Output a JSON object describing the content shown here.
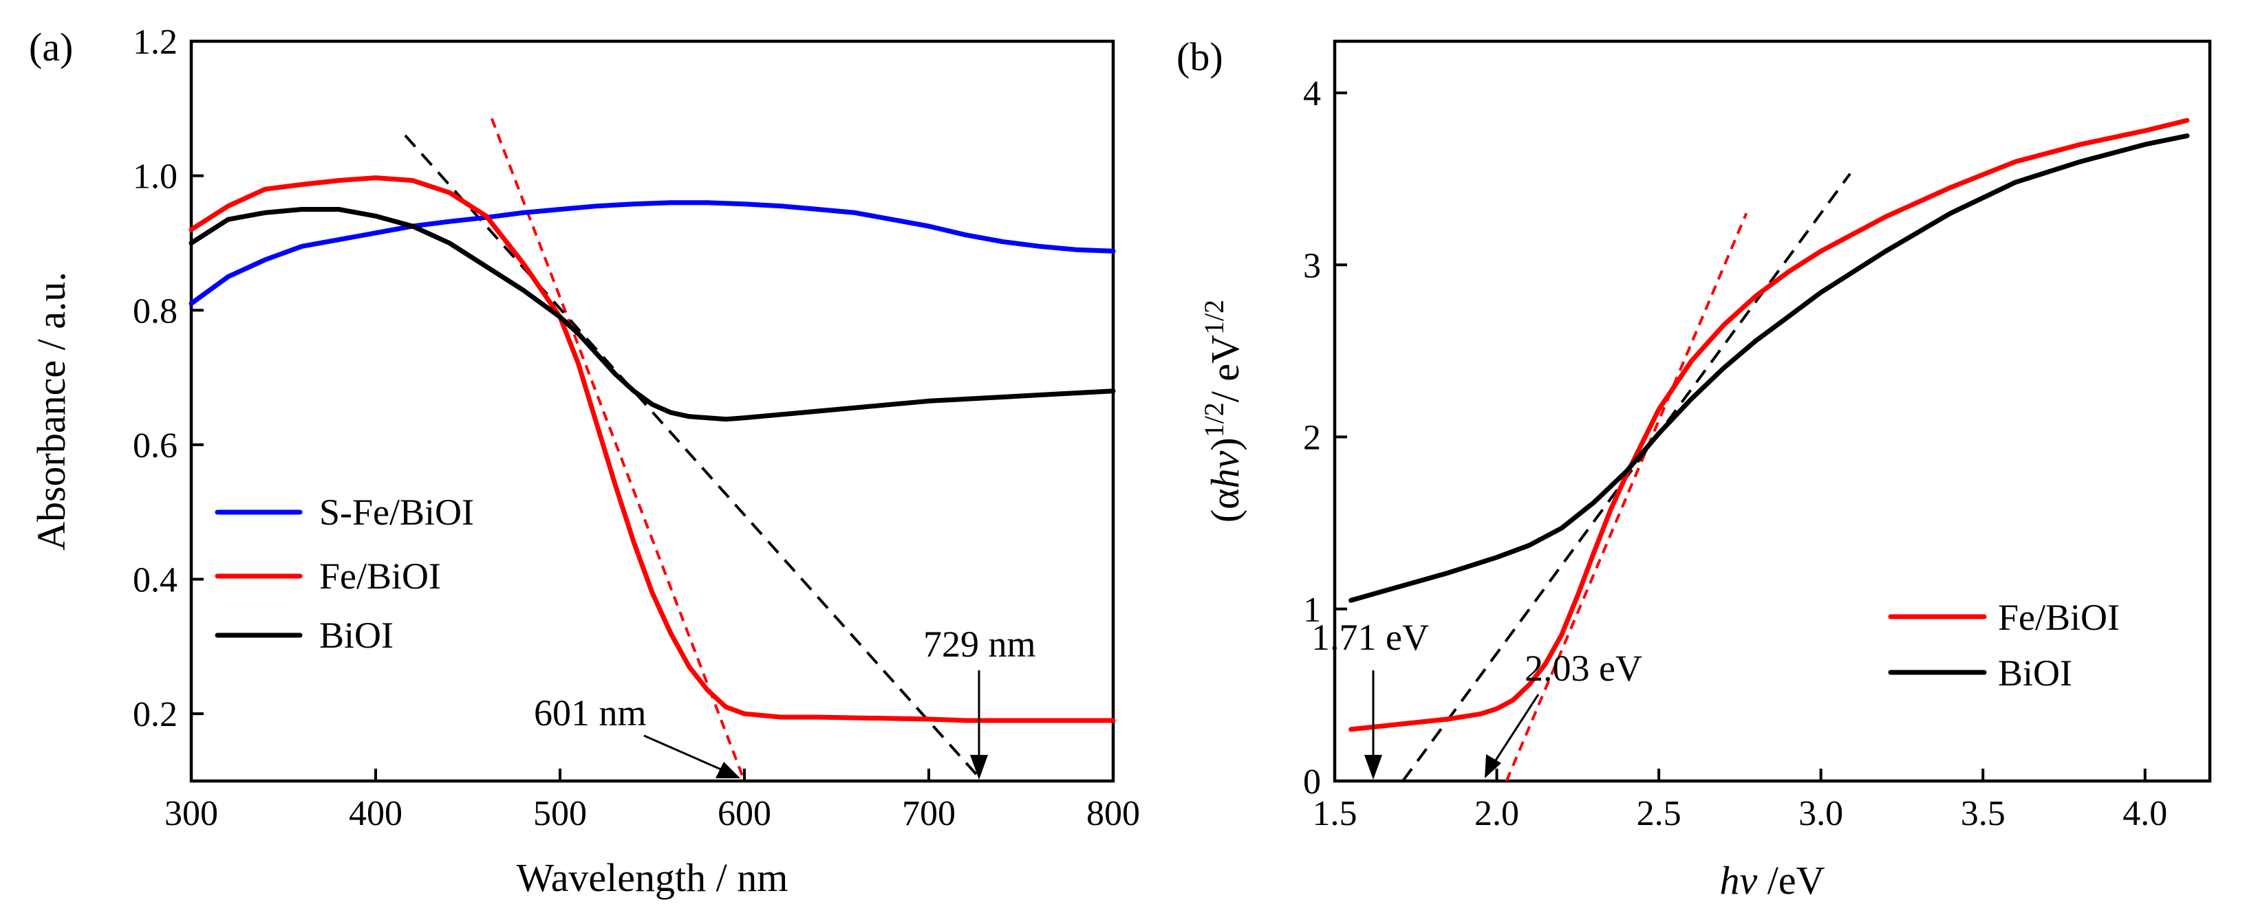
{
  "chart_data": [
    {
      "panel": "(a)",
      "type": "line",
      "xlabel": "Wavelength / nm",
      "ylabel": "Absorbance / a.u.",
      "xlim": [
        300,
        800
      ],
      "ylim": [
        0.1,
        1.2
      ],
      "xticks": [
        300,
        400,
        500,
        600,
        700,
        800
      ],
      "yticks": [
        0.2,
        0.4,
        0.6,
        0.8,
        1.0,
        1.2
      ],
      "xtick_labels": [
        "300",
        "400",
        "500",
        "600",
        "700",
        "800"
      ],
      "ytick_labels": [
        "0.2",
        "0.4",
        "0.6",
        "0.8",
        "1.0",
        "1.2"
      ],
      "legend_position": "middle-left",
      "series": [
        {
          "name": "S-Fe/BiOI",
          "color": "#0000ff",
          "x": [
            300,
            320,
            340,
            360,
            380,
            400,
            420,
            440,
            460,
            480,
            500,
            520,
            540,
            560,
            580,
            600,
            620,
            640,
            660,
            680,
            700,
            720,
            740,
            760,
            780,
            800
          ],
          "y": [
            0.81,
            0.85,
            0.875,
            0.895,
            0.905,
            0.915,
            0.925,
            0.932,
            0.938,
            0.945,
            0.95,
            0.955,
            0.958,
            0.96,
            0.96,
            0.958,
            0.955,
            0.95,
            0.945,
            0.935,
            0.925,
            0.912,
            0.902,
            0.895,
            0.89,
            0.888
          ]
        },
        {
          "name": "Fe/BiOI",
          "color": "#ff0000",
          "x": [
            300,
            320,
            340,
            360,
            380,
            400,
            420,
            440,
            460,
            480,
            500,
            510,
            520,
            530,
            540,
            550,
            560,
            570,
            580,
            590,
            600,
            620,
            640,
            660,
            680,
            700,
            720,
            740,
            760,
            780,
            800
          ],
          "y": [
            0.92,
            0.955,
            0.98,
            0.987,
            0.993,
            0.997,
            0.993,
            0.975,
            0.94,
            0.87,
            0.79,
            0.72,
            0.63,
            0.54,
            0.455,
            0.38,
            0.32,
            0.27,
            0.235,
            0.21,
            0.2,
            0.195,
            0.195,
            0.194,
            0.193,
            0.192,
            0.19,
            0.19,
            0.19,
            0.19,
            0.19
          ]
        },
        {
          "name": "BiOI",
          "color": "#000000",
          "x": [
            300,
            320,
            340,
            360,
            380,
            400,
            420,
            440,
            460,
            480,
            500,
            510,
            520,
            530,
            540,
            550,
            560,
            570,
            580,
            590,
            600,
            620,
            640,
            660,
            680,
            700,
            720,
            740,
            760,
            780,
            800
          ],
          "y": [
            0.9,
            0.935,
            0.945,
            0.95,
            0.95,
            0.94,
            0.925,
            0.9,
            0.865,
            0.83,
            0.79,
            0.765,
            0.735,
            0.705,
            0.68,
            0.66,
            0.648,
            0.642,
            0.64,
            0.638,
            0.64,
            0.645,
            0.65,
            0.655,
            0.66,
            0.665,
            0.668,
            0.671,
            0.674,
            0.677,
            0.68
          ]
        }
      ],
      "tangent_lines": [
        {
          "color": "#ff0000",
          "x": [
            463,
            600
          ],
          "y": [
            1.085,
            0.1
          ]
        },
        {
          "color": "#000000",
          "x": [
            416,
            729
          ],
          "y": [
            1.06,
            0.1
          ]
        }
      ],
      "annotations": [
        {
          "text": "601 nm",
          "x": 601,
          "y": 0.1
        },
        {
          "text": "729 nm",
          "x": 729,
          "y": 0.1
        }
      ]
    },
    {
      "panel": "(b)",
      "type": "line",
      "xlabel_italic": "hν",
      "xlabel_rest": " /eV",
      "ylabel_open": "(α",
      "ylabel_italic": "hν",
      "ylabel_close": ")",
      "ylabel_sup": "1/2",
      "ylabel_unit": "/ eV",
      "ylabel_unit_sup": "1/2",
      "xlim": [
        1.5,
        4.2
      ],
      "ylim": [
        0,
        4.3
      ],
      "xticks": [
        1.5,
        2.0,
        2.5,
        3.0,
        3.5,
        4.0
      ],
      "yticks": [
        0,
        1,
        2,
        3,
        4
      ],
      "xtick_labels": [
        "1.5",
        "2.0",
        "2.5",
        "3.0",
        "3.5",
        "4.0"
      ],
      "ytick_labels": [
        "0",
        "1",
        "2",
        "3",
        "4"
      ],
      "legend_position": "bottom-right",
      "series": [
        {
          "name": "Fe/BiOI",
          "color": "#ff0000",
          "x": [
            1.55,
            1.7,
            1.85,
            1.95,
            2.0,
            2.05,
            2.1,
            2.15,
            2.2,
            2.25,
            2.3,
            2.35,
            2.4,
            2.45,
            2.5,
            2.6,
            2.7,
            2.8,
            2.9,
            3.0,
            3.2,
            3.4,
            3.6,
            3.8,
            4.0,
            4.13
          ],
          "y": [
            0.3,
            0.33,
            0.36,
            0.39,
            0.42,
            0.47,
            0.56,
            0.68,
            0.85,
            1.08,
            1.33,
            1.57,
            1.78,
            1.97,
            2.16,
            2.44,
            2.65,
            2.82,
            2.96,
            3.08,
            3.28,
            3.45,
            3.6,
            3.7,
            3.78,
            3.84
          ]
        },
        {
          "name": "BiOI",
          "color": "#000000",
          "x": [
            1.55,
            1.7,
            1.85,
            2.0,
            2.1,
            2.2,
            2.3,
            2.4,
            2.45,
            2.5,
            2.6,
            2.7,
            2.8,
            2.9,
            3.0,
            3.2,
            3.4,
            3.6,
            3.8,
            4.0,
            4.13
          ],
          "y": [
            1.05,
            1.13,
            1.21,
            1.3,
            1.37,
            1.47,
            1.62,
            1.8,
            1.91,
            2.02,
            2.22,
            2.4,
            2.56,
            2.7,
            2.84,
            3.08,
            3.3,
            3.48,
            3.6,
            3.7,
            3.75
          ]
        }
      ],
      "tangent_lines": [
        {
          "color": "#ff0000",
          "x": [
            2.03,
            2.77
          ],
          "y": [
            0,
            3.3
          ]
        },
        {
          "color": "#000000",
          "x": [
            1.71,
            3.09
          ],
          "y": [
            0,
            3.53
          ]
        }
      ],
      "annotations": [
        {
          "text": "1.71 eV",
          "x": 1.71,
          "y": 0
        },
        {
          "text": "2.03 eV",
          "x": 2.03,
          "y": 0
        }
      ]
    }
  ]
}
